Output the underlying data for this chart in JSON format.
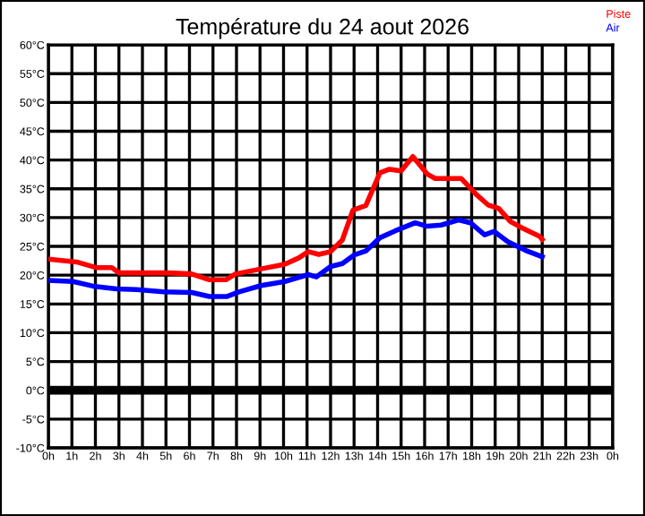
{
  "chart_data": {
    "type": "line",
    "title": "Température du 24 aout 2026",
    "xlim": [
      "2026-08-24T00:00",
      "2026-08-25T00:00"
    ],
    "xticks": [
      {
        "value": "2026-08-24T00:00",
        "label": "0h"
      },
      {
        "value": "2026-08-24T01:00",
        "label": "1h"
      },
      {
        "value": "2026-08-24T02:00",
        "label": "2h"
      },
      {
        "value": "2026-08-24T03:00",
        "label": "3h"
      },
      {
        "value": "2026-08-24T04:00",
        "label": "4h"
      },
      {
        "value": "2026-08-24T05:00",
        "label": "5h"
      },
      {
        "value": "2026-08-24T06:00",
        "label": "6h"
      },
      {
        "value": "2026-08-24T07:00",
        "label": "7h"
      },
      {
        "value": "2026-08-24T08:00",
        "label": "8h"
      },
      {
        "value": "2026-08-24T09:00",
        "label": "9h"
      },
      {
        "value": "2026-08-24T10:00",
        "label": "10h"
      },
      {
        "value": "2026-08-24T11:00",
        "label": "11h"
      },
      {
        "value": "2026-08-24T12:00",
        "label": "12h"
      },
      {
        "value": "2026-08-24T13:00",
        "label": "13h"
      },
      {
        "value": "2026-08-24T14:00",
        "label": "14h"
      },
      {
        "value": "2026-08-24T15:00",
        "label": "15h"
      },
      {
        "value": "2026-08-24T16:00",
        "label": "16h"
      },
      {
        "value": "2026-08-24T17:00",
        "label": "17h"
      },
      {
        "value": "2026-08-24T18:00",
        "label": "18h"
      },
      {
        "value": "2026-08-24T19:00",
        "label": "19h"
      },
      {
        "value": "2026-08-24T20:00",
        "label": "20h"
      },
      {
        "value": "2026-08-24T21:00",
        "label": "21h"
      },
      {
        "value": "2026-08-24T22:00",
        "label": "22h"
      },
      {
        "value": "2026-08-24T23:00",
        "label": "23h"
      },
      {
        "value": "2026-08-25T00:00",
        "label": "0h"
      }
    ],
    "ylim": [
      -10,
      60
    ],
    "yticks": [
      {
        "value": -10,
        "label": "-10°C"
      },
      {
        "value": -5,
        "label": "-5°C"
      },
      {
        "value": 0,
        "label": "0°C"
      },
      {
        "value": 5,
        "label": "5°C"
      },
      {
        "value": 10,
        "label": "10°C"
      },
      {
        "value": 15,
        "label": "15°C"
      },
      {
        "value": 20,
        "label": "20°C"
      },
      {
        "value": 25,
        "label": "25°C"
      },
      {
        "value": 30,
        "label": "30°C"
      },
      {
        "value": 35,
        "label": "35°C"
      },
      {
        "value": 40,
        "label": "40°C"
      },
      {
        "value": 45,
        "label": "45°C"
      },
      {
        "value": 50,
        "label": "50°C"
      },
      {
        "value": 55,
        "label": "55°C"
      },
      {
        "value": 60,
        "label": "60°C"
      }
    ],
    "grid": true,
    "legend": "top right",
    "marker": "none",
    "line_style": "solid",
    "ref_lines": [
      {
        "axis": "y",
        "value": 0,
        "color": "#000000"
      }
    ],
    "series": [
      {
        "name": "Piste",
        "color": "#ff0000",
        "x": [
          "2026-08-24T00:00",
          "2026-08-24T01:12",
          "2026-08-24T02:03",
          "2026-08-24T02:42",
          "2026-08-24T03:00",
          "2026-08-24T05:06",
          "2026-08-24T06:06",
          "2026-08-24T06:51",
          "2026-08-24T07:33",
          "2026-08-24T07:57",
          "2026-08-24T09:03",
          "2026-08-24T10:03",
          "2026-08-24T10:39",
          "2026-08-24T11:03",
          "2026-08-24T11:30",
          "2026-08-24T12:00",
          "2026-08-24T12:30",
          "2026-08-24T12:57",
          "2026-08-24T13:30",
          "2026-08-24T14:06",
          "2026-08-24T14:30",
          "2026-08-24T15:00",
          "2026-08-24T15:30",
          "2026-08-24T16:06",
          "2026-08-24T16:27",
          "2026-08-24T17:33",
          "2026-08-24T18:12",
          "2026-08-24T18:42",
          "2026-08-24T19:09",
          "2026-08-24T19:39",
          "2026-08-24T20:09",
          "2026-08-24T20:54",
          "2026-08-24T21:00"
        ],
        "values": [
          22.8,
          22.3,
          21.3,
          21.3,
          20.4,
          20.4,
          20.2,
          19.2,
          19.2,
          20.2,
          21.1,
          21.9,
          23.0,
          24.1,
          23.6,
          24.1,
          26.1,
          31.3,
          32.1,
          37.8,
          38.4,
          38.1,
          40.6,
          37.6,
          36.8,
          36.8,
          34.0,
          32.2,
          31.6,
          29.3,
          28.2,
          26.7,
          26.2
        ]
      },
      {
        "name": "Air",
        "color": "#0000ff",
        "x": [
          "2026-08-24T00:00",
          "2026-08-24T01:03",
          "2026-08-24T01:54",
          "2026-08-24T02:54",
          "2026-08-24T03:45",
          "2026-08-24T04:54",
          "2026-08-24T06:06",
          "2026-08-24T06:51",
          "2026-08-24T07:36",
          "2026-08-24T08:06",
          "2026-08-24T09:03",
          "2026-08-24T10:03",
          "2026-08-24T11:03",
          "2026-08-24T11:24",
          "2026-08-24T12:00",
          "2026-08-24T12:30",
          "2026-08-24T13:00",
          "2026-08-24T13:30",
          "2026-08-24T14:06",
          "2026-08-24T14:45",
          "2026-08-24T15:36",
          "2026-08-24T16:06",
          "2026-08-24T16:42",
          "2026-08-24T17:27",
          "2026-08-24T17:57",
          "2026-08-24T18:33",
          "2026-08-24T18:57",
          "2026-08-24T19:33",
          "2026-08-24T20:18",
          "2026-08-24T21:00"
        ],
        "values": [
          19.1,
          18.9,
          18.1,
          17.6,
          17.5,
          17.1,
          17.0,
          16.3,
          16.3,
          17.1,
          18.2,
          18.9,
          20.1,
          19.7,
          21.5,
          22.0,
          23.5,
          24.2,
          26.5,
          27.7,
          29.1,
          28.5,
          28.7,
          29.6,
          29.1,
          27.0,
          27.6,
          25.8,
          24.3,
          23.2
        ]
      }
    ]
  }
}
